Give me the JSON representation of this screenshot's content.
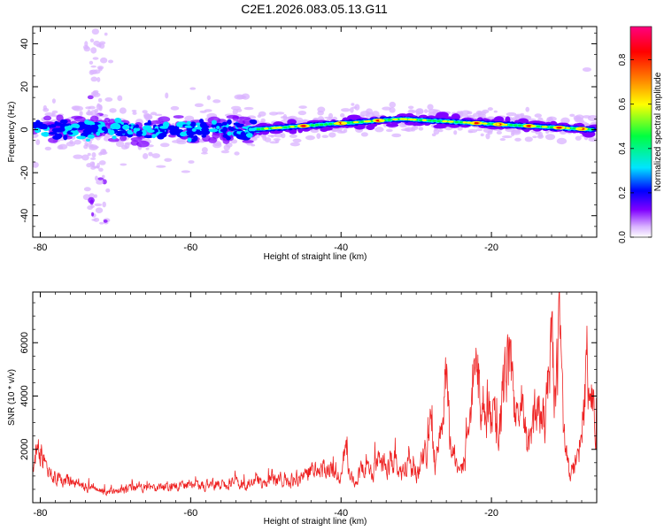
{
  "chart_data": [
    {
      "type": "heatmap",
      "title": "C2E1.2026.083.05.13.G11",
      "xlabel": "Height of straight line (km)",
      "ylabel": "Frequency (Hz)",
      "xlim": [
        -81,
        -6
      ],
      "ylim": [
        -50,
        48
      ],
      "xticks": [
        -80,
        -60,
        -40,
        -20
      ],
      "xtick_labels": [
        "-80",
        "-60",
        "-40",
        "-20"
      ],
      "yticks": [
        -40,
        -20,
        0,
        20,
        40
      ],
      "ytick_labels": [
        "-40",
        "-20",
        "0",
        "20",
        "40"
      ],
      "colorbar": {
        "label": "Normalized spectral amplitude",
        "range": [
          0,
          0.95
        ],
        "ticks": [
          0.0,
          0.2,
          0.4,
          0.6,
          0.8
        ],
        "tick_labels": [
          "0.0",
          "0.2",
          "0.4",
          "0.6",
          "0.8"
        ],
        "colors": [
          "#ffffff",
          "#d9b3ff",
          "#8000ff",
          "#0000ff",
          "#00e5ff",
          "#00ff40",
          "#ffff00",
          "#ff8000",
          "#ff0000",
          "#ff0080"
        ]
      },
      "description_values": {
        "noisy_band_x_range": [
          -81,
          -52
        ],
        "noisy_band_freq_half_width": 8,
        "signal_track_start": [
          -52,
          0
        ],
        "signal_track_peak_shift": [
          -32,
          5
        ],
        "signal_track_end": [
          -6,
          0
        ],
        "strong_cores_x": [
          -45,
          -40,
          -35,
          -22,
          -19,
          -15,
          -11,
          -8
        ]
      }
    },
    {
      "type": "line",
      "xlabel": "Height of straight line (km)",
      "ylabel": "SNR (10 * v/v)",
      "xlim": [
        -81,
        -6
      ],
      "ylim": [
        0,
        7900
      ],
      "xticks": [
        -80,
        -60,
        -40,
        -20
      ],
      "xtick_labels": [
        "-80",
        "-60",
        "-40",
        "-20"
      ],
      "yticks": [
        2000,
        4000,
        6000
      ],
      "ytick_labels": [
        "2000",
        "4000",
        "6000"
      ],
      "line_color": "#ee2222",
      "series": [
        {
          "name": "SNR",
          "x": [
            -81,
            -80,
            -79,
            -77,
            -75,
            -73,
            -71,
            -69,
            -67,
            -65,
            -63,
            -61,
            -59,
            -57,
            -55,
            -53,
            -51,
            -49,
            -47,
            -45,
            -44,
            -43,
            -42,
            -41,
            -40,
            -39.5,
            -39,
            -38,
            -37,
            -36,
            -35,
            -34,
            -33,
            -32,
            -31,
            -30,
            -29,
            -28.5,
            -28,
            -27.5,
            -27,
            -26.5,
            -26,
            -25.5,
            -25,
            -24.5,
            -24,
            -23.5,
            -23,
            -22.5,
            -22,
            -21,
            -20,
            -19.5,
            -19,
            -18.5,
            -18,
            -17.5,
            -17,
            -16.5,
            -16,
            -15.5,
            -15,
            -14.5,
            -14,
            -13.5,
            -13,
            -12.5,
            -12,
            -11.5,
            -11,
            -10.5,
            -10,
            -9.5,
            -9,
            -8.5,
            -8,
            -7.5,
            -7,
            -6.5,
            -6
          ],
          "y": [
            1200,
            2000,
            1100,
            800,
            700,
            500,
            400,
            450,
            600,
            550,
            600,
            650,
            600,
            700,
            750,
            700,
            800,
            900,
            800,
            1000,
            1300,
            1000,
            1400,
            1200,
            800,
            2500,
            1000,
            900,
            1300,
            1100,
            1500,
            1200,
            1600,
            1100,
            1400,
            1000,
            1700,
            2000,
            3600,
            1200,
            2100,
            3800,
            4300,
            2400,
            2000,
            1000,
            1100,
            1800,
            3000,
            3800,
            4800,
            3600,
            3800,
            3000,
            2400,
            4200,
            5300,
            4800,
            3300,
            2800,
            3600,
            2500,
            2000,
            2800,
            3900,
            2700,
            3100,
            4000,
            6000,
            3500,
            7600,
            2800,
            1600,
            1100,
            1300,
            1800,
            2700,
            4500,
            4000,
            3500,
            3100
          ]
        }
      ]
    }
  ]
}
